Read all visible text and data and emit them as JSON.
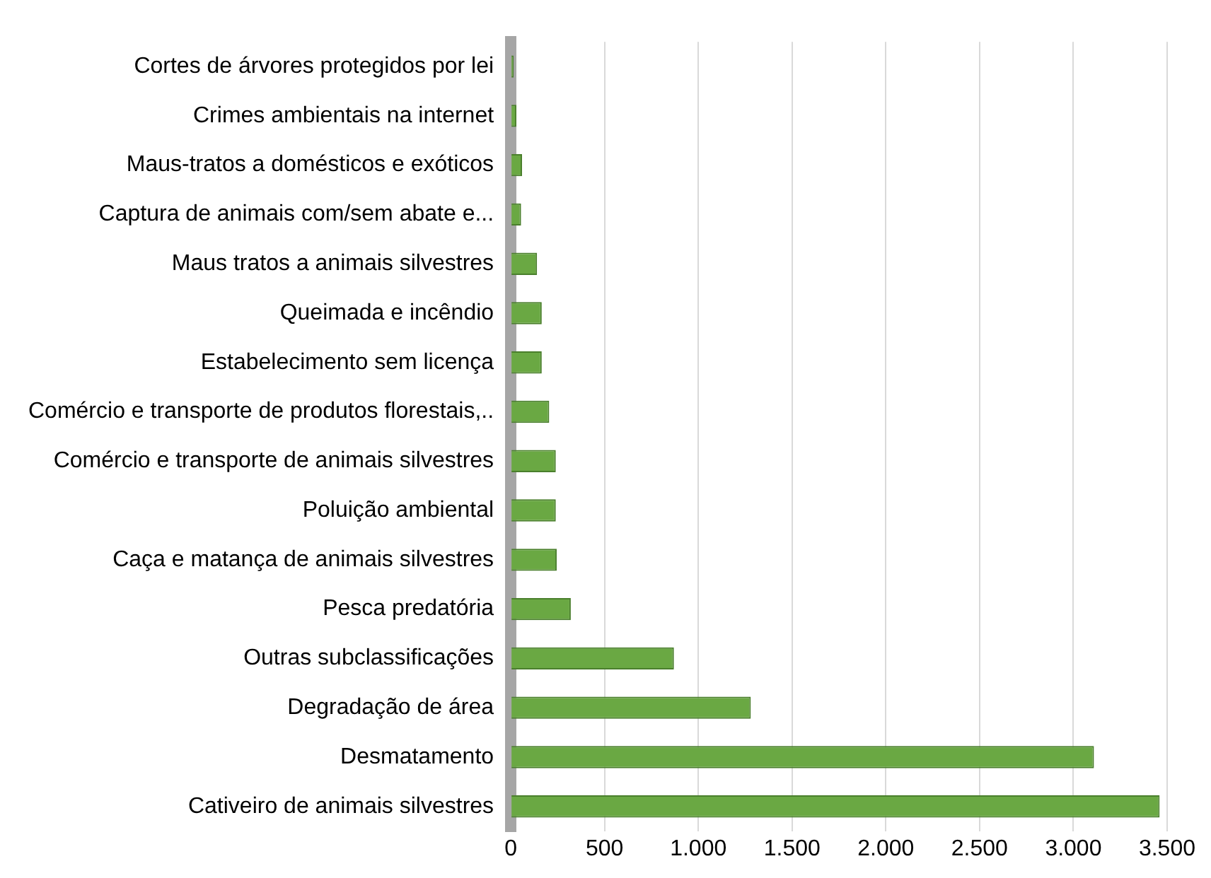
{
  "chart_data": {
    "type": "bar",
    "orientation": "horizontal",
    "categories": [
      "Cortes de árvores protegidos por lei",
      "Crimes ambientais na internet",
      "Maus-tratos a domésticos e exóticos",
      "Captura de animais com/sem abate e...",
      "Maus tratos a animais silvestres",
      "Queimada e incêndio",
      "Estabelecimento sem licença",
      "Comércio e transporte de produtos florestais,..",
      "Comércio e transporte de animais silvestres",
      "Poluição ambiental",
      "Caça e matança de animais silvestres",
      "Pesca predatória",
      "Outras subclassificações",
      "Degradação de área",
      "Desmatamento",
      "Cativeiro de animais silvestres"
    ],
    "values": [
      15,
      30,
      60,
      55,
      140,
      165,
      165,
      205,
      240,
      240,
      245,
      320,
      870,
      1280,
      3110,
      3460
    ],
    "color": "#6aa843",
    "xlim": [
      0,
      3500
    ],
    "xticks": [
      0,
      {
        "value": 500,
        "label": "500"
      },
      {
        "value": 1000,
        "label": "1.000"
      },
      {
        "value": 1500,
        "label": "1.500"
      },
      {
        "value": 2000,
        "label": "2.000"
      },
      {
        "value": 2500,
        "label": "2.500"
      },
      {
        "value": 3000,
        "label": "3.000"
      },
      {
        "value": 3500,
        "label": "3.500"
      }
    ],
    "grid": "x"
  }
}
